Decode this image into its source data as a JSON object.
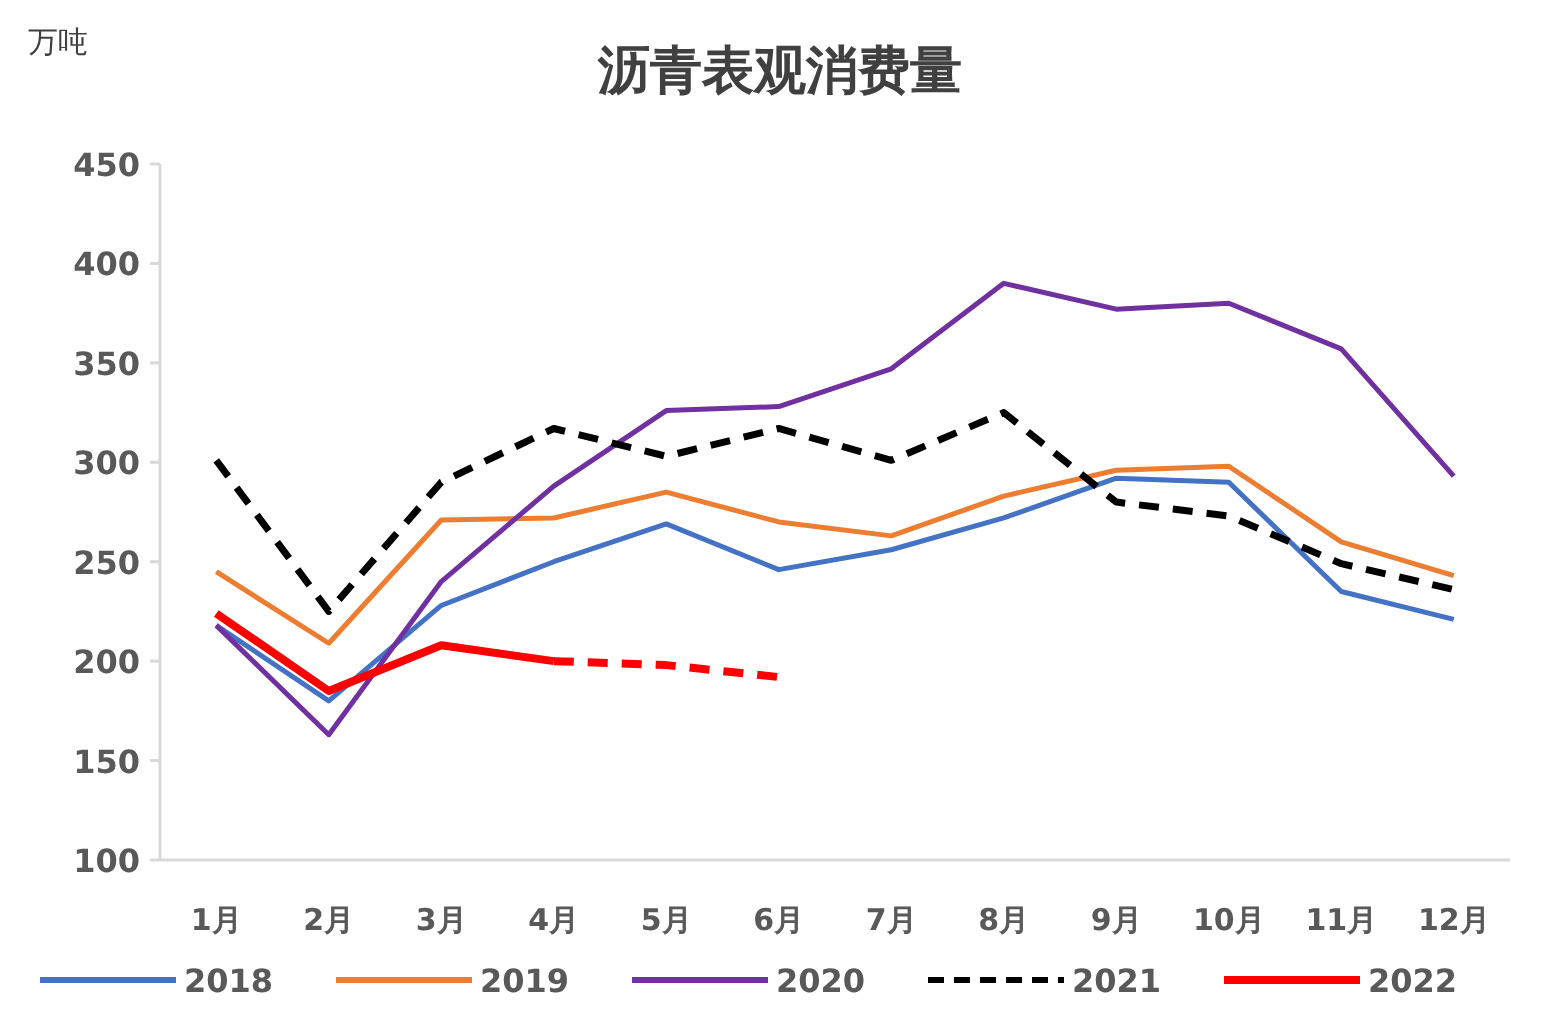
{
  "chart_data": {
    "type": "line",
    "title": "沥青表观消费量",
    "ylabel": "万吨",
    "categories": [
      "1月",
      "2月",
      "3月",
      "4月",
      "5月",
      "6月",
      "7月",
      "8月",
      "9月",
      "10月",
      "11月",
      "12月"
    ],
    "ylim": [
      100,
      450
    ],
    "yticks": [
      100,
      150,
      200,
      250,
      300,
      350,
      400,
      450
    ],
    "grid": false,
    "legend": "bottom",
    "marker": "none",
    "series": [
      {
        "name": "2018",
        "color": "#4472c4",
        "values": [
          218,
          180,
          228,
          250,
          269,
          246,
          256,
          272,
          292,
          290,
          235,
          221
        ]
      },
      {
        "name": "2019",
        "color": "#ed7d31",
        "values": [
          245,
          209,
          271,
          272,
          285,
          270,
          263,
          283,
          296,
          298,
          260,
          243
        ]
      },
      {
        "name": "2020",
        "color": "#7030a0",
        "values": [
          218,
          163,
          240,
          288,
          326,
          328,
          347,
          390,
          377,
          380,
          357,
          293
        ]
      },
      {
        "name": "2021",
        "color": "#000000",
        "line_style": "dashed",
        "values": [
          301,
          225,
          290,
          317,
          303,
          317,
          301,
          325,
          280,
          273,
          249,
          236
        ]
      },
      {
        "name": "2022",
        "color": "#ff0000",
        "values": [
          224,
          185,
          208,
          200,
          null,
          null,
          null,
          null,
          null,
          null,
          null,
          null
        ]
      },
      {
        "color": "#ff0000",
        "line_style": "dashed",
        "values": [
          null,
          null,
          null,
          200,
          198,
          192,
          null,
          null,
          null,
          null,
          null,
          null
        ]
      }
    ]
  }
}
